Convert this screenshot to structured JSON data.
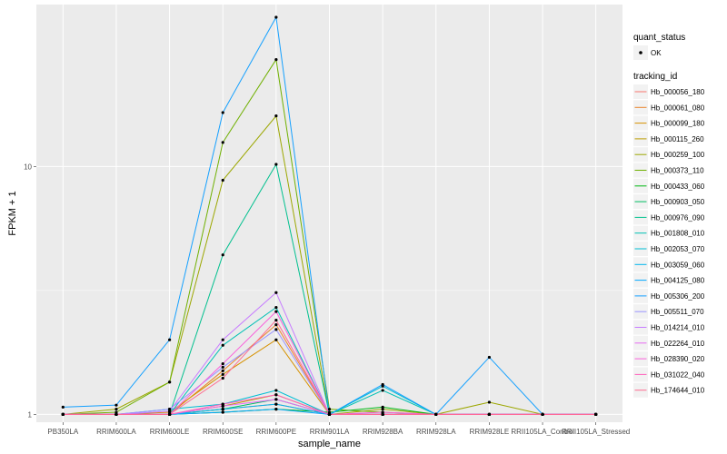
{
  "chart_data": {
    "type": "line",
    "title": "",
    "xlabel": "sample_name",
    "ylabel": "FPKM + 1",
    "y_scale": "log",
    "ylim": [
      0.93,
      45
    ],
    "y_ticks": [
      1,
      10
    ],
    "y_tick_labels": [
      "1",
      "10"
    ],
    "panel_background": "#ebebeb",
    "grid_color": "#ffffff",
    "categories": [
      "PB350LA",
      "RRIM600LA",
      "RRIM600LE",
      "RRIM600SE",
      "RRIM600PE",
      "RRIM901LA",
      "RRIM928BA",
      "RRIM928LA",
      "RRIM928LE",
      "RRII105LA_Control",
      "RRII105LA_Stressed"
    ],
    "point_legend": {
      "title": "quant_status",
      "entries": [
        "OK"
      ]
    },
    "legend_title": "tracking_id",
    "series": [
      {
        "name": "Hb_000056_180",
        "color": "#F8766D",
        "values": [
          1,
          1,
          1,
          1.05,
          1.1,
          1,
          1,
          1,
          1,
          1,
          1
        ]
      },
      {
        "name": "Hb_000061_080",
        "color": "#E9842C",
        "values": [
          1,
          1,
          1,
          1.5,
          2.3,
          1,
          1,
          1,
          1,
          1,
          1
        ]
      },
      {
        "name": "Hb_000099_180",
        "color": "#D69100",
        "values": [
          1,
          1,
          1.02,
          1.45,
          2.0,
          1,
          1,
          1,
          1,
          1,
          1
        ]
      },
      {
        "name": "Hb_000115_260",
        "color": "#BC9D00",
        "values": [
          1,
          1,
          1,
          1.08,
          1.2,
          1,
          1,
          1,
          1,
          1,
          1
        ]
      },
      {
        "name": "Hb_000259_100",
        "color": "#9CA700",
        "values": [
          1,
          1.05,
          1.35,
          8.8,
          16.0,
          1,
          1.05,
          1,
          1.12,
          1,
          1
        ]
      },
      {
        "name": "Hb_000373_110",
        "color": "#6FB000",
        "values": [
          1,
          1.02,
          1.35,
          12.5,
          27.0,
          1.05,
          1.02,
          1,
          1,
          1,
          1
        ]
      },
      {
        "name": "Hb_000433_060",
        "color": "#00B813",
        "values": [
          1,
          1,
          1,
          1.02,
          1.05,
          1.02,
          1.07,
          1,
          1,
          1,
          1
        ]
      },
      {
        "name": "Hb_000903_050",
        "color": "#00BD61",
        "values": [
          1,
          1,
          1,
          1.05,
          1.15,
          1,
          1,
          1,
          1,
          1,
          1
        ]
      },
      {
        "name": "Hb_000976_090",
        "color": "#00C08E",
        "values": [
          1,
          1,
          1,
          4.4,
          10.2,
          1,
          1,
          1,
          1,
          1,
          1
        ]
      },
      {
        "name": "Hb_001808_010",
        "color": "#00C0B4",
        "values": [
          1,
          1,
          1,
          1.9,
          2.7,
          1,
          1.25,
          1,
          1,
          1,
          1
        ]
      },
      {
        "name": "Hb_002053_070",
        "color": "#00BDD4",
        "values": [
          1,
          1,
          1.05,
          1.1,
          1.25,
          1,
          1.3,
          1,
          1,
          1,
          1
        ]
      },
      {
        "name": "Hb_003059_060",
        "color": "#00B5EE",
        "values": [
          1,
          1,
          1,
          1.05,
          1.1,
          1,
          1,
          1,
          1,
          1,
          1
        ]
      },
      {
        "name": "Hb_004125_080",
        "color": "#00A7FF",
        "values": [
          1,
          1,
          1,
          1.02,
          1.05,
          1,
          1,
          1,
          1,
          1,
          1
        ]
      },
      {
        "name": "Hb_005306_200",
        "color": "#14A0FF",
        "values": [
          1.07,
          1.09,
          2.0,
          16.5,
          40.0,
          1,
          1.32,
          1,
          1.7,
          1,
          1
        ]
      },
      {
        "name": "Hb_005511_070",
        "color": "#9A94FF",
        "values": [
          1,
          1,
          1.05,
          1.55,
          2.2,
          1,
          1,
          1,
          1,
          1,
          1
        ]
      },
      {
        "name": "Hb_014214_010",
        "color": "#C77CFF",
        "values": [
          1,
          1,
          1.03,
          2.0,
          3.1,
          1,
          1,
          1,
          1,
          1,
          1
        ]
      },
      {
        "name": "Hb_022264_010",
        "color": "#E76BF3",
        "values": [
          1,
          1,
          1,
          1.08,
          1.15,
          1,
          1,
          1,
          1,
          1,
          1
        ]
      },
      {
        "name": "Hb_028390_020",
        "color": "#FA62DB",
        "values": [
          1,
          1,
          1,
          1.6,
          2.6,
          1,
          1.02,
          1,
          1,
          1,
          1
        ]
      },
      {
        "name": "Hb_031022_040",
        "color": "#FF62BC",
        "values": [
          1,
          1,
          1,
          1.1,
          1.2,
          1,
          1,
          1,
          1,
          1,
          1
        ]
      },
      {
        "name": "Hb_174644_010",
        "color": "#FF6C91",
        "values": [
          1,
          1,
          1,
          1.4,
          2.4,
          1,
          1,
          1,
          1,
          1,
          1
        ]
      }
    ]
  }
}
